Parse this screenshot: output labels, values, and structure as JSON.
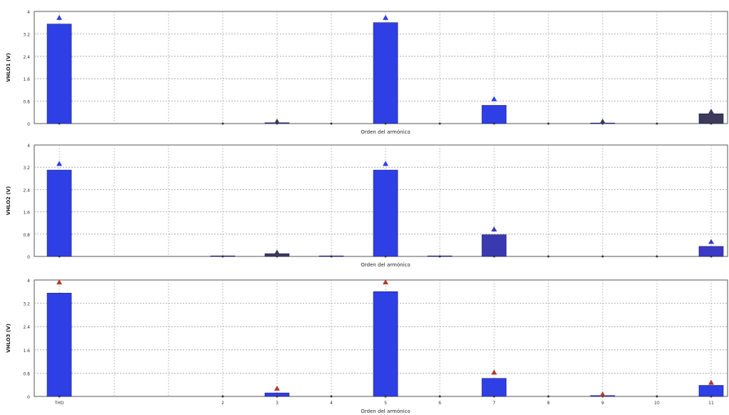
{
  "chart_data": [
    {
      "type": "bar",
      "xlabel": "Orden del armónico",
      "ylabel": "VHLO1 (V)",
      "ylim": [
        0,
        4
      ],
      "yticks": [
        "0",
        "0.8",
        "1.6",
        "2.4",
        "3.2",
        "4"
      ],
      "categories": [
        "THD",
        "2",
        "3",
        "4",
        "5",
        "6",
        "7",
        "8",
        "9",
        "10",
        "11"
      ],
      "values": [
        3.55,
        0,
        0.03,
        0,
        3.6,
        0,
        0.65,
        0,
        0.02,
        0,
        0.35
      ],
      "markers": [
        3.75,
        0,
        0.05,
        0,
        3.75,
        0,
        0.85,
        0,
        0.05,
        0,
        0.4
      ],
      "bar_colors": [
        "#2f3fe6",
        "#2f3fe6",
        "#3d3a58",
        "#2f3fe6",
        "#2f3fe6",
        "#2f3fe6",
        "#2f3fe6",
        "#2f3fe6",
        "#3d3a58",
        "#2f3fe6",
        "#3d3a58"
      ],
      "grid": true
    },
    {
      "type": "bar",
      "xlabel": "Orden del armónico",
      "ylabel": "VHLO2 (V)",
      "ylim": [
        0,
        4
      ],
      "yticks": [
        "0",
        "0.8",
        "1.6",
        "2.4",
        "3.2",
        "4"
      ],
      "categories": [
        "THD",
        "2",
        "3",
        "4",
        "5",
        "6",
        "7",
        "8",
        "9",
        "10",
        "11"
      ],
      "values": [
        3.1,
        0.02,
        0.1,
        0.02,
        3.1,
        0.02,
        0.78,
        0,
        0,
        0,
        0.36
      ],
      "markers": [
        3.3,
        0,
        0.12,
        0,
        3.3,
        0,
        0.95,
        0,
        0,
        0,
        0.5
      ],
      "bar_colors": [
        "#2f3fe6",
        "#3d3a58",
        "#3d3a58",
        "#2f3fe6",
        "#2f3fe6",
        "#2f3fe6",
        "#3b39b0",
        "#2f3fe6",
        "#2f3fe6",
        "#2f3fe6",
        "#3b39c8"
      ],
      "grid": true
    },
    {
      "type": "bar",
      "xlabel": "Orden del armónico",
      "ylabel": "VHLO3 (V)",
      "ylim": [
        0,
        4
      ],
      "yticks": [
        "0",
        "0.8",
        "1.6",
        "2.4",
        "3.2",
        "4"
      ],
      "categories": [
        "THD",
        "2",
        "3",
        "4",
        "5",
        "6",
        "7",
        "8",
        "9",
        "10",
        "11"
      ],
      "values": [
        3.55,
        0,
        0.12,
        0,
        3.6,
        0,
        0.62,
        0,
        0.03,
        0,
        0.38
      ],
      "markers": [
        3.9,
        0,
        0.25,
        0,
        3.9,
        0,
        0.8,
        0,
        0.05,
        0,
        0.45
      ],
      "bar_colors": [
        "#2f3fe6",
        "#2f3fe6",
        "#2f3fe6",
        "#2f3fe6",
        "#2f3fe6",
        "#2f3fe6",
        "#2f3fe6",
        "#2f3fe6",
        "#2f3fe6",
        "#2f3fe6",
        "#2f3fe6"
      ],
      "marker_color": "#b23a2a",
      "grid": true
    }
  ]
}
